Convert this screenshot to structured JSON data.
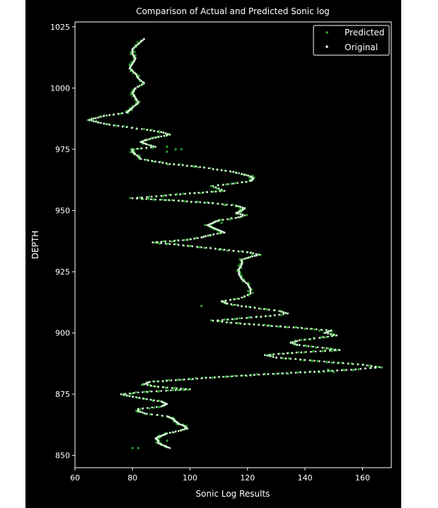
{
  "chart_data": {
    "type": "scatter",
    "title": "Comparison of Actual and Predicted Sonic log",
    "xlabel": "Sonic Log Results",
    "ylabel": "DEPTH",
    "xlim": [
      60,
      170
    ],
    "ylim": [
      845,
      1027
    ],
    "xticks": [
      "60",
      "80",
      "100",
      "120",
      "140",
      "160"
    ],
    "yticks": [
      "850",
      "875",
      "900",
      "925",
      "950",
      "975",
      "1000",
      "1025"
    ],
    "grid": false,
    "legend_position": "top-right",
    "background": "#000000",
    "series": [
      {
        "name": "Predicted",
        "color": "#2e9e2e"
      },
      {
        "name": "Original",
        "color": "#e6f5e6"
      }
    ],
    "profile": [
      [
        1020,
        84
      ],
      [
        1018,
        82
      ],
      [
        1016,
        80
      ],
      [
        1014,
        80
      ],
      [
        1012,
        81
      ],
      [
        1010,
        80
      ],
      [
        1008,
        79
      ],
      [
        1006,
        81
      ],
      [
        1004,
        82
      ],
      [
        1002,
        84
      ],
      [
        1000,
        81
      ],
      [
        998,
        80
      ],
      [
        996,
        81
      ],
      [
        994,
        82
      ],
      [
        992,
        80
      ],
      [
        991,
        79
      ],
      [
        990,
        78
      ],
      [
        989,
        72
      ],
      [
        988,
        68
      ],
      [
        987,
        65
      ],
      [
        986,
        68
      ],
      [
        985,
        72
      ],
      [
        984,
        78
      ],
      [
        983,
        85
      ],
      [
        982,
        90
      ],
      [
        981,
        93
      ],
      [
        980,
        89
      ],
      [
        979,
        85
      ],
      [
        978,
        83
      ],
      [
        977,
        85
      ],
      [
        976,
        88
      ],
      [
        975,
        80
      ],
      [
        974,
        80
      ],
      [
        973,
        81
      ],
      [
        971,
        83
      ],
      [
        970,
        88
      ],
      [
        969,
        93
      ],
      [
        968,
        102
      ],
      [
        967,
        108
      ],
      [
        966,
        114
      ],
      [
        965,
        118
      ],
      [
        964,
        121
      ],
      [
        963,
        122
      ],
      [
        962,
        121
      ],
      [
        961,
        115
      ],
      [
        960,
        108
      ],
      [
        958,
        112
      ],
      [
        957,
        100
      ],
      [
        956,
        90
      ],
      [
        955,
        80
      ],
      [
        954,
        96
      ],
      [
        953,
        108
      ],
      [
        952,
        116
      ],
      [
        951,
        119
      ],
      [
        950,
        118
      ],
      [
        949,
        116
      ],
      [
        948,
        119
      ],
      [
        947,
        116
      ],
      [
        946,
        110
      ],
      [
        945,
        108
      ],
      [
        944,
        106
      ],
      [
        943,
        108
      ],
      [
        942,
        110
      ],
      [
        941,
        112
      ],
      [
        940,
        107
      ],
      [
        939,
        104
      ],
      [
        938,
        99
      ],
      [
        937,
        87
      ],
      [
        936,
        96
      ],
      [
        935,
        104
      ],
      [
        934,
        112
      ],
      [
        933,
        120
      ],
      [
        932,
        124
      ],
      [
        931,
        121
      ],
      [
        930,
        118
      ],
      [
        928,
        118
      ],
      [
        926,
        117
      ],
      [
        924,
        117
      ],
      [
        922,
        118
      ],
      [
        920,
        120
      ],
      [
        918,
        121
      ],
      [
        916,
        121
      ],
      [
        914,
        117
      ],
      [
        913,
        111
      ],
      [
        912,
        113
      ],
      [
        911,
        118
      ],
      [
        910,
        124
      ],
      [
        909,
        131
      ],
      [
        908,
        134
      ],
      [
        907,
        128
      ],
      [
        906,
        118
      ],
      [
        905,
        108
      ],
      [
        904,
        116
      ],
      [
        903,
        127
      ],
      [
        902,
        139
      ],
      [
        901,
        149
      ],
      [
        900,
        147
      ],
      [
        899,
        151
      ],
      [
        898,
        145
      ],
      [
        897,
        138
      ],
      [
        896,
        135
      ],
      [
        895,
        138
      ],
      [
        894,
        146
      ],
      [
        893,
        152
      ],
      [
        892,
        137
      ],
      [
        891,
        126
      ],
      [
        890,
        130
      ],
      [
        889,
        140
      ],
      [
        888,
        150
      ],
      [
        887,
        160
      ],
      [
        886,
        166
      ],
      [
        885,
        156
      ],
      [
        884,
        140
      ],
      [
        883,
        124
      ],
      [
        882,
        110
      ],
      [
        881,
        98
      ],
      [
        880,
        86
      ],
      [
        879,
        84
      ],
      [
        878,
        89
      ],
      [
        877,
        100
      ],
      [
        876,
        85
      ],
      [
        875,
        76
      ],
      [
        874,
        80
      ],
      [
        873,
        85
      ],
      [
        872,
        90
      ],
      [
        871,
        92
      ],
      [
        870,
        90
      ],
      [
        869,
        82
      ],
      [
        868,
        82
      ],
      [
        867,
        85
      ],
      [
        866,
        92
      ],
      [
        865,
        94
      ],
      [
        864,
        95
      ],
      [
        863,
        96
      ],
      [
        862,
        98
      ],
      [
        861,
        99
      ],
      [
        860,
        96
      ],
      [
        859,
        92
      ],
      [
        858,
        90
      ],
      [
        857,
        88
      ],
      [
        856,
        89
      ],
      [
        855,
        89
      ],
      [
        854,
        91
      ],
      [
        853,
        93
      ]
    ],
    "predicted_outliers": [
      [
        975,
        95
      ],
      [
        976,
        92
      ],
      [
        975,
        97
      ],
      [
        974,
        92
      ],
      [
        946,
        110
      ],
      [
        945,
        111
      ],
      [
        935,
        103
      ],
      [
        934,
        110
      ],
      [
        911,
        104
      ],
      [
        853,
        80
      ],
      [
        853,
        82
      ],
      [
        856,
        92
      ],
      [
        884,
        145
      ],
      [
        884,
        150
      ],
      [
        885,
        148
      ],
      [
        901,
        145
      ],
      [
        879,
        85
      ]
    ]
  }
}
